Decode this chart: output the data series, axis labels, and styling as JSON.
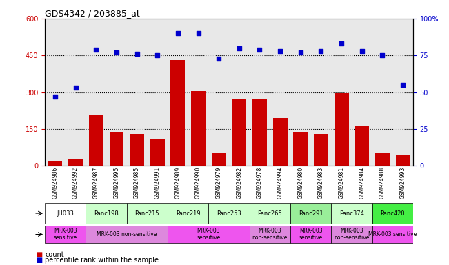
{
  "title": "GDS4342 / 203885_at",
  "samples": [
    "GSM924986",
    "GSM924992",
    "GSM924987",
    "GSM924995",
    "GSM924985",
    "GSM924991",
    "GSM924989",
    "GSM924990",
    "GSM924979",
    "GSM924982",
    "GSM924978",
    "GSM924994",
    "GSM924980",
    "GSM924983",
    "GSM924981",
    "GSM924984",
    "GSM924988",
    "GSM924993"
  ],
  "counts": [
    18,
    30,
    210,
    140,
    130,
    110,
    430,
    305,
    55,
    270,
    270,
    195,
    140,
    130,
    295,
    165,
    55,
    45
  ],
  "percentiles": [
    47,
    53,
    79,
    77,
    76,
    75,
    90,
    90,
    73,
    80,
    79,
    78,
    77,
    78,
    83,
    78,
    75,
    55
  ],
  "bar_color": "#cc0000",
  "dot_color": "#0000cc",
  "ylim_left": [
    0,
    600
  ],
  "ylim_right": [
    0,
    100
  ],
  "yticks_left": [
    0,
    150,
    300,
    450,
    600
  ],
  "yticks_right": [
    0,
    25,
    50,
    75,
    100
  ],
  "ytick_labels_right": [
    "0",
    "25",
    "50",
    "75",
    "100%"
  ],
  "hlines": [
    150,
    300,
    450
  ],
  "bg_color": "#e8e8e8",
  "n_samples": 18,
  "cell_spans": [
    {
      "name": "JH033",
      "cs": 0,
      "ce": 2,
      "color": "#ffffff"
    },
    {
      "name": "Panc198",
      "cs": 2,
      "ce": 4,
      "color": "#ccffcc"
    },
    {
      "name": "Panc215",
      "cs": 4,
      "ce": 6,
      "color": "#ccffcc"
    },
    {
      "name": "Panc219",
      "cs": 6,
      "ce": 8,
      "color": "#ccffcc"
    },
    {
      "name": "Panc253",
      "cs": 8,
      "ce": 10,
      "color": "#ccffcc"
    },
    {
      "name": "Panc265",
      "cs": 10,
      "ce": 12,
      "color": "#ccffcc"
    },
    {
      "name": "Panc291",
      "cs": 12,
      "ce": 14,
      "color": "#99ee99"
    },
    {
      "name": "Panc374",
      "cs": 14,
      "ce": 16,
      "color": "#ccffcc"
    },
    {
      "name": "Panc420",
      "cs": 16,
      "ce": 18,
      "color": "#44ee44"
    }
  ],
  "other_spans": [
    {
      "name": "MRK-003\nsensitive",
      "cs": 0,
      "ce": 2,
      "color": "#ee55ee"
    },
    {
      "name": "MRK-003 non-sensitive",
      "cs": 2,
      "ce": 6,
      "color": "#dd88dd"
    },
    {
      "name": "MRK-003\nsensitive",
      "cs": 6,
      "ce": 10,
      "color": "#ee55ee"
    },
    {
      "name": "MRK-003\nnon-sensitive",
      "cs": 10,
      "ce": 12,
      "color": "#dd88dd"
    },
    {
      "name": "MRK-003\nsensitive",
      "cs": 12,
      "ce": 14,
      "color": "#ee55ee"
    },
    {
      "name": "MRK-003\nnon-sensitive",
      "cs": 14,
      "ce": 16,
      "color": "#dd88dd"
    },
    {
      "name": "MRK-003 sensitive",
      "cs": 16,
      "ce": 18,
      "color": "#ee55ee"
    }
  ]
}
